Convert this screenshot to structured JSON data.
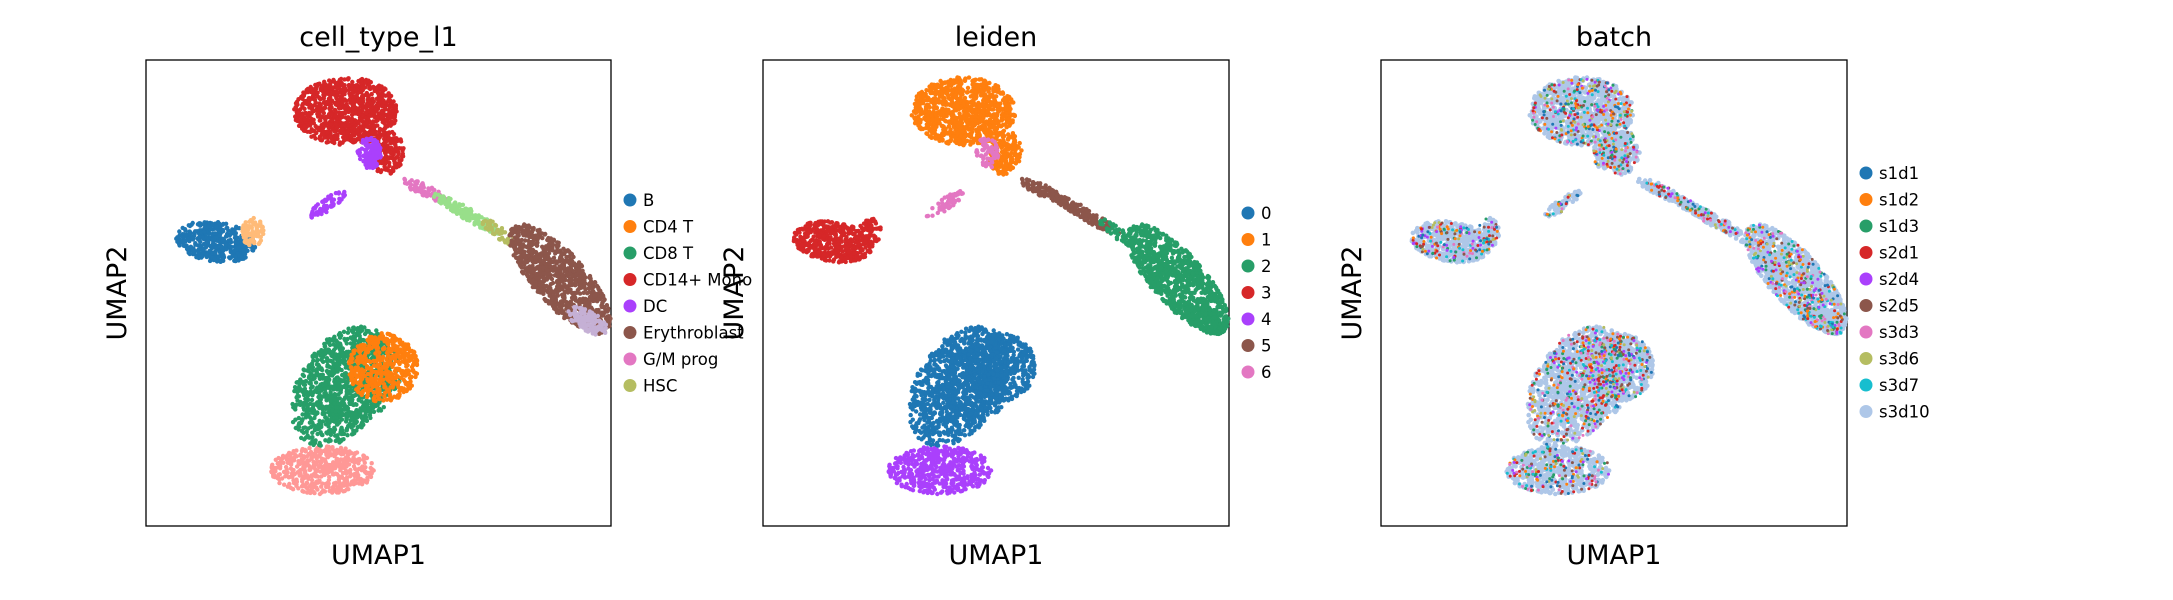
{
  "chart_data": [
    {
      "type": "scatter",
      "title": "cell_type_l1",
      "xlabel": "UMAP1",
      "ylabel": "UMAP2",
      "legend_position": "right",
      "categories": [
        {
          "name": "B",
          "color": "#1f77b4"
        },
        {
          "name": "CD4 T",
          "color": "#ff7f0e"
        },
        {
          "name": "CD8 T",
          "color": "#279e68"
        },
        {
          "name": "CD14+ Mono",
          "color": "#d62728"
        },
        {
          "name": "DC",
          "color": "#aa40fc"
        },
        {
          "name": "Erythroblast",
          "color": "#8c564b"
        },
        {
          "name": "G/M prog",
          "color": "#e377c2"
        },
        {
          "name": "HSC",
          "color": "#b5bd61"
        }
      ],
      "unlabeled_colors": [
        "#ffbb78",
        "#98df8a",
        "#ff9896",
        "#c5b0d5"
      ]
    },
    {
      "type": "scatter",
      "title": "leiden",
      "xlabel": "UMAP1",
      "ylabel": "UMAP2",
      "legend_position": "right",
      "categories": [
        {
          "name": "0",
          "color": "#1f77b4"
        },
        {
          "name": "1",
          "color": "#ff7f0e"
        },
        {
          "name": "2",
          "color": "#279e68"
        },
        {
          "name": "3",
          "color": "#d62728"
        },
        {
          "name": "4",
          "color": "#aa40fc"
        },
        {
          "name": "5",
          "color": "#8c564b"
        },
        {
          "name": "6",
          "color": "#e377c2"
        }
      ]
    },
    {
      "type": "scatter",
      "title": "batch",
      "xlabel": "UMAP1",
      "ylabel": "UMAP2",
      "legend_position": "right",
      "categories": [
        {
          "name": "s1d1",
          "color": "#1f77b4"
        },
        {
          "name": "s1d2",
          "color": "#ff7f0e"
        },
        {
          "name": "s1d3",
          "color": "#279e68"
        },
        {
          "name": "s2d1",
          "color": "#d62728"
        },
        {
          "name": "s2d4",
          "color": "#aa40fc"
        },
        {
          "name": "s2d5",
          "color": "#8c564b"
        },
        {
          "name": "s3d3",
          "color": "#e377c2"
        },
        {
          "name": "s3d6",
          "color": "#b5bd61"
        },
        {
          "name": "s3d7",
          "color": "#17becf"
        },
        {
          "name": "s3d10",
          "color": "#aec7e8"
        }
      ]
    }
  ]
}
